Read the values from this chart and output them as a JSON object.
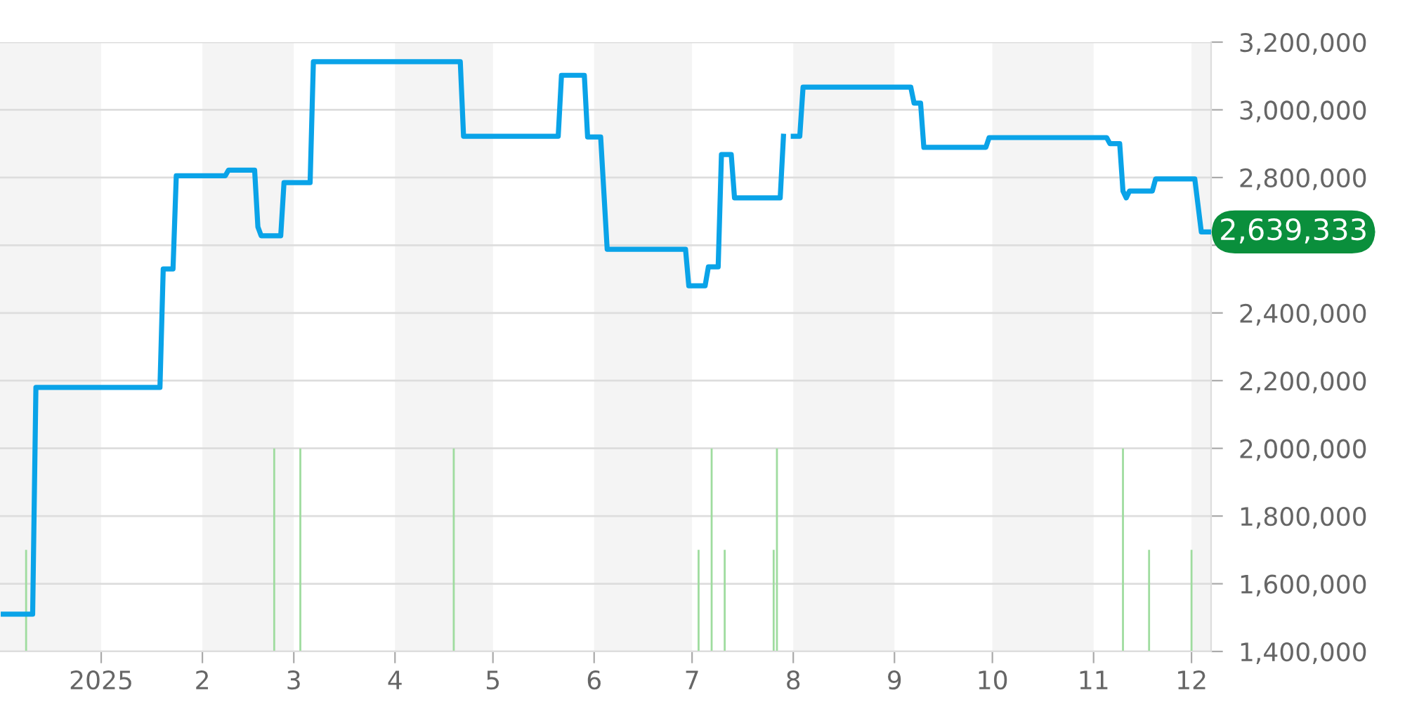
{
  "chart_data": {
    "type": "line",
    "xlim": [
      "2024-12-01",
      "2025-12-07"
    ],
    "ylim": [
      1400000,
      3200000
    ],
    "xticks": [
      {
        "value": "2025-01-01",
        "label": "2025"
      },
      {
        "value": "2025-02-01",
        "label": "2"
      },
      {
        "value": "2025-03-01",
        "label": "3"
      },
      {
        "value": "2025-04-01",
        "label": "4"
      },
      {
        "value": "2025-05-01",
        "label": "5"
      },
      {
        "value": "2025-06-01",
        "label": "6"
      },
      {
        "value": "2025-07-01",
        "label": "7"
      },
      {
        "value": "2025-08-01",
        "label": "8"
      },
      {
        "value": "2025-09-01",
        "label": "9"
      },
      {
        "value": "2025-10-01",
        "label": "10"
      },
      {
        "value": "2025-11-01",
        "label": "11"
      },
      {
        "value": "2025-12-01",
        "label": "12"
      }
    ],
    "yticks": [
      {
        "value": 1400000,
        "label": "1,400,000"
      },
      {
        "value": 1600000,
        "label": "1,600,000"
      },
      {
        "value": 1800000,
        "label": "1,800,000"
      },
      {
        "value": 2000000,
        "label": "2,000,000"
      },
      {
        "value": 2200000,
        "label": "2,200,000"
      },
      {
        "value": 2400000,
        "label": "2,400,000"
      },
      {
        "value": 2600000,
        "label": null
      },
      {
        "value": 2800000,
        "label": "2,800,000"
      },
      {
        "value": 3000000,
        "label": "3,000,000"
      },
      {
        "value": 3200000,
        "label": "3,200,000"
      }
    ],
    "grid": "y",
    "legend": false,
    "bands": [
      {
        "axis": "x",
        "from": "2024-12-01",
        "to": "2025-01-01",
        "color": "#f4f4f4"
      },
      {
        "axis": "x",
        "from": "2025-02-01",
        "to": "2025-03-01",
        "color": "#f4f4f4"
      },
      {
        "axis": "x",
        "from": "2025-04-01",
        "to": "2025-05-01",
        "color": "#f4f4f4"
      },
      {
        "axis": "x",
        "from": "2025-06-01",
        "to": "2025-07-01",
        "color": "#f4f4f4"
      },
      {
        "axis": "x",
        "from": "2025-08-01",
        "to": "2025-09-01",
        "color": "#f4f4f4"
      },
      {
        "axis": "x",
        "from": "2025-10-01",
        "to": "2025-11-01",
        "color": "#f4f4f4"
      },
      {
        "axis": "x",
        "from": "2025-12-01",
        "to": "2025-12-07",
        "color": "#f4f4f4"
      }
    ],
    "series": [
      {
        "type": "bar",
        "color": "#9fdc9f",
        "x": [
          "2024-12-09",
          "2025-02-23",
          "2025-03-03",
          "2025-04-19",
          "2025-07-03",
          "2025-07-07",
          "2025-07-11",
          "2025-07-26",
          "2025-07-27",
          "2025-11-10",
          "2025-11-18",
          "2025-12-01"
        ],
        "values": [
          1700000,
          2000000,
          2000000,
          2000000,
          1700000,
          2000000,
          1700000,
          1700000,
          2000000,
          2000000,
          1700000,
          1700000
        ]
      },
      {
        "color": "#0aa3e8",
        "x": [
          "2024-12-02",
          "2024-12-11",
          "2024-12-12",
          "2025-01-19",
          "2025-01-20",
          "2025-01-23",
          "2025-01-24",
          "2025-02-08",
          "2025-02-09",
          "2025-02-17",
          "2025-02-18",
          "2025-02-19",
          "2025-02-25",
          "2025-02-26",
          "2025-03-06",
          "2025-03-07",
          "2025-04-21",
          "2025-04-22",
          "2025-05-21",
          "2025-05-22",
          "2025-05-29",
          "2025-05-30",
          "2025-06-03",
          "2025-06-05",
          "2025-06-29",
          "2025-06-30",
          "2025-07-05",
          "2025-07-06",
          "2025-07-09",
          "2025-07-10",
          "2025-07-13",
          "2025-07-14",
          "2025-07-28",
          "2025-07-29",
          "2025-07-31",
          "2025-08-01",
          "2025-08-03",
          "2025-08-04",
          "2025-09-06",
          "2025-09-07",
          "2025-09-09",
          "2025-09-10",
          "2025-09-29",
          "2025-09-30",
          "2025-11-05",
          "2025-11-06",
          "2025-11-09",
          "2025-11-10",
          "2025-11-11",
          "2025-11-12",
          "2025-11-19",
          "2025-11-20",
          "2025-12-02",
          "2025-12-04",
          "2025-12-07"
        ],
        "values": [
          1510000,
          1510000,
          2180000,
          2180000,
          2530000,
          2530000,
          2805000,
          2805000,
          2822000,
          2822000,
          2654000,
          2628000,
          2628000,
          2785000,
          2785000,
          3142000,
          3142000,
          2922000,
          2922000,
          3102000,
          3102000,
          2920000,
          2920000,
          2588000,
          2588000,
          2480000,
          2480000,
          2536000,
          2536000,
          2868000,
          2868000,
          2740000,
          2740000,
          2922000,
          null,
          2922000,
          2922000,
          3067000,
          3067000,
          3020000,
          3020000,
          2889000,
          2889000,
          2918000,
          2918000,
          2900000,
          2900000,
          2760000,
          2740000,
          2760000,
          2760000,
          2796000,
          2796000,
          2639333,
          2639333
        ]
      }
    ],
    "annotations": [
      {
        "text": "2,639,333",
        "x": "2025-12-07",
        "y": 2639333
      }
    ]
  }
}
